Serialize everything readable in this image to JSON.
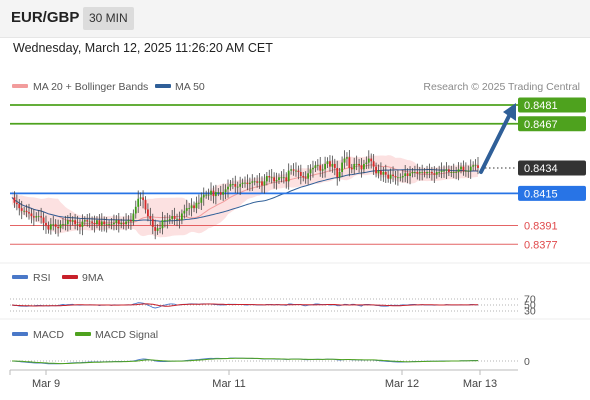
{
  "header": {
    "symbol": "EUR/GBP",
    "timeframe": "30 MIN"
  },
  "datetime": "Wednesday, March 12, 2025 11:26:20 AM CET",
  "chart_data": {
    "type": "candlestick",
    "credit": "Research © 2025 Trading Central",
    "legend": [
      {
        "name": "MA 20 + Bollinger Bands",
        "color": "#f29c9c"
      },
      {
        "name": "MA 50",
        "color": "#2f5f98"
      }
    ],
    "y_range": [
      0.8369,
      0.8487
    ],
    "levels": [
      {
        "value": 0.8481,
        "label": "0.8481",
        "color": "#4ea21e",
        "style": "solid",
        "tag": "filled"
      },
      {
        "value": 0.8467,
        "label": "0.8467",
        "color": "#4ea21e",
        "style": "solid",
        "tag": "filled"
      },
      {
        "value": 0.8434,
        "label": "0.8434",
        "color": "#333333",
        "style": "dotted",
        "tag": "filled"
      },
      {
        "value": 0.8415,
        "label": "0.8415",
        "color": "#2874e6",
        "style": "solid",
        "tag": "filled"
      },
      {
        "value": 0.8391,
        "label": "0.8391",
        "color": "#e0494b",
        "style": "thin",
        "tag": "text"
      },
      {
        "value": 0.8377,
        "label": "0.8377",
        "color": "#e0494b",
        "style": "thin",
        "tag": "text"
      }
    ],
    "close_path": [
      0.8412,
      0.8408,
      0.8407,
      0.8404,
      0.8402,
      0.8402,
      0.8401,
      0.84,
      0.8398,
      0.8397,
      0.8398,
      0.8398,
      0.8397,
      0.8393,
      0.8391,
      0.8388,
      0.8392,
      0.8392,
      0.839,
      0.8389,
      0.8392,
      0.8392,
      0.8392,
      0.8395,
      0.8394,
      0.8395,
      0.8392,
      0.8392,
      0.839,
      0.8394,
      0.8395,
      0.8394,
      0.8394,
      0.8393,
      0.8392,
      0.8395,
      0.8391,
      0.8394,
      0.8392,
      0.8392,
      0.8392,
      0.8392,
      0.8393,
      0.8395,
      0.8392,
      0.8393,
      0.8392,
      0.8394,
      0.8395,
      0.8394,
      0.84,
      0.8405,
      0.8411,
      0.8412,
      0.841,
      0.8403,
      0.8398,
      0.8396,
      0.839,
      0.8387,
      0.8389,
      0.8389,
      0.8395,
      0.8395,
      0.8395,
      0.8396,
      0.8398,
      0.8396,
      0.8396,
      0.8395,
      0.84,
      0.8402,
      0.8404,
      0.8404,
      0.8406,
      0.8404,
      0.8408,
      0.8408,
      0.8412,
      0.8414,
      0.8414,
      0.8414,
      0.8417,
      0.8413,
      0.8416,
      0.8416,
      0.8414,
      0.8416,
      0.8418,
      0.842,
      0.8422,
      0.8422,
      0.842,
      0.842,
      0.8422,
      0.8423,
      0.8423,
      0.8422,
      0.8423,
      0.8424,
      0.8424,
      0.8423,
      0.8424,
      0.8421,
      0.8424,
      0.8428,
      0.8427,
      0.8427,
      0.8424,
      0.8425,
      0.8427,
      0.8427,
      0.8427,
      0.8424,
      0.8432,
      0.8433,
      0.8432,
      0.8432,
      0.8431,
      0.8428,
      0.8427,
      0.8426,
      0.843,
      0.8433,
      0.8434,
      0.8436,
      0.8436,
      0.8432,
      0.8433,
      0.8437,
      0.8439,
      0.8435,
      0.8437,
      0.8434,
      0.8427,
      0.8431,
      0.8438,
      0.8441,
      0.8442,
      0.8434,
      0.8433,
      0.8437,
      0.8437,
      0.8436,
      0.8433,
      0.8437,
      0.8438,
      0.8441,
      0.8439,
      0.8435,
      0.843,
      0.8432,
      0.8429,
      0.8431,
      0.8429,
      0.8426,
      0.8429,
      0.8428,
      0.8427,
      0.8427,
      0.8427,
      0.8428,
      0.843,
      0.8428,
      0.843,
      0.8431,
      0.8431,
      0.843,
      0.8431,
      0.8431,
      0.843,
      0.8431,
      0.8431,
      0.843,
      0.8429,
      0.8431,
      0.8431,
      0.8432,
      0.8432,
      0.8433,
      0.8431,
      0.8431,
      0.8431,
      0.8431,
      0.8433,
      0.8435,
      0.8432,
      0.8432,
      0.8432,
      0.8435,
      0.8436,
      0.8436,
      0.8434
    ],
    "rsi": {
      "name": "RSI",
      "signal_name": "9MA",
      "levels": [
        70,
        50,
        30
      ],
      "color": "#4a78c8",
      "signal_color": "#c8202a"
    },
    "macd": {
      "name": "MACD",
      "signal_name": "MACD Signal",
      "zero_label": "0",
      "color": "#4a78c8",
      "signal_color": "#4ea21e"
    },
    "x_ticks": [
      "Mar 9",
      "Mar 11",
      "Mar 12",
      "Mar 13"
    ]
  }
}
